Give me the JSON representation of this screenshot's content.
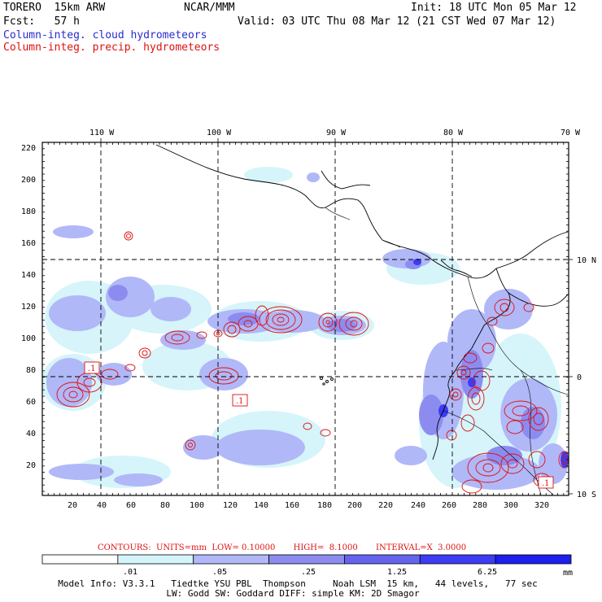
{
  "header": {
    "model": "TORERO  15km ARW",
    "center": "NCAR/MMM",
    "init": "Init: 18 UTC Mon 05 Mar 12",
    "fcst": "Fcst:   57 h",
    "valid": "Valid: 03 UTC Thu 08 Mar 12 (21 CST Wed 07 Mar 12)",
    "field1": "Column-integ. cloud hydrometeors",
    "field2": "Column-integ. precip. hydrometeors"
  },
  "colors": {
    "field1": "#2a2ad0",
    "field2": "#e01010",
    "contour": "#e01010",
    "coast": "#000000"
  },
  "map": {
    "lon_labels": [
      "110 W",
      "100 W",
      "90 W",
      "80 W",
      "70 W"
    ],
    "lat_labels": [
      "10 N",
      "0",
      "10 S"
    ],
    "y_ticks": [
      "220",
      "200",
      "180",
      "160",
      "140",
      "120",
      "100",
      "80",
      "60",
      "40",
      "20"
    ],
    "x_ticks": [
      "20",
      "40",
      "60",
      "80",
      "100",
      "120",
      "140",
      "160",
      "180",
      "200",
      "220",
      "240",
      "260",
      "280",
      "300",
      "320"
    ],
    "contour_labels": [
      ".1",
      ".1",
      ".1"
    ]
  },
  "contour_info": {
    "label": "CONTOURS:  UNITS=mm  LOW= 0.10000       HIGH=  8.1000       INTERVAL=X  3.0000"
  },
  "colorbar": {
    "labels": [
      ".01",
      ".05",
      ".25",
      "1.25",
      "6.25"
    ],
    "unit": "mm",
    "colors": [
      "#ffffff",
      "#d4f4fa",
      "#b0b8f8",
      "#8c8cf0",
      "#6464ee",
      "#3c3cf4",
      "#1e1eee"
    ]
  },
  "footer": {
    "line1": "Model Info: V3.3.1   Tiedtke YSU PBL  Thompson     Noah LSM  15 km,   44 levels,   77 sec",
    "line2": "LW: Godd SW: Goddard DIFF: simple KM: 2D Smagor"
  }
}
